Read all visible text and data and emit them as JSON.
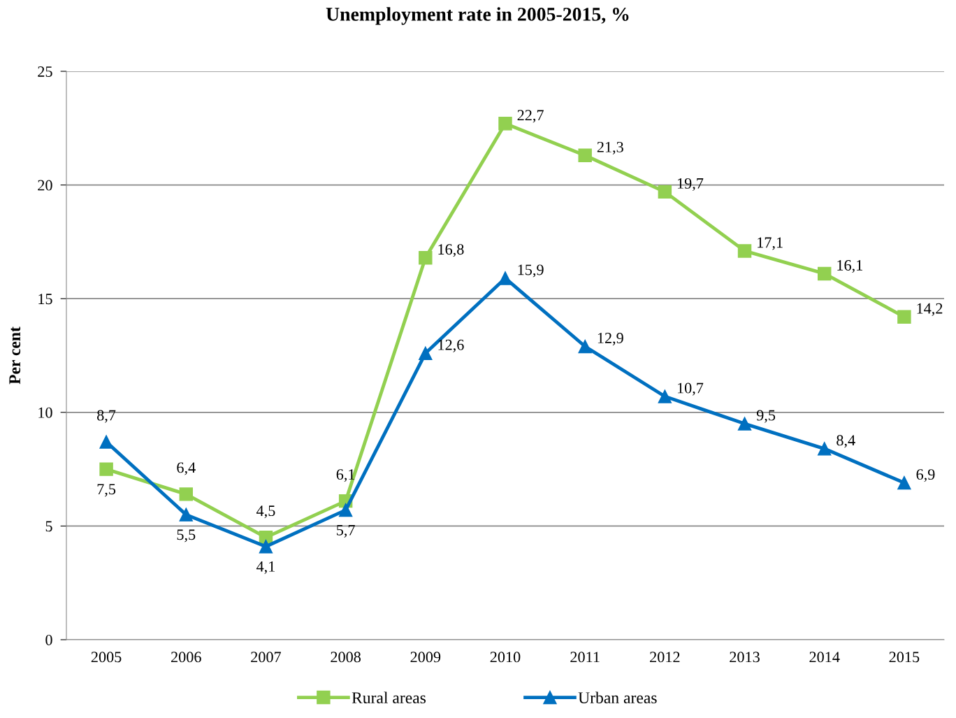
{
  "chart_data": {
    "type": "line",
    "title": "Unemployment rate in 2005-2015, %",
    "ylabel": "Per cent",
    "categories": [
      "2005",
      "2006",
      "2007",
      "2008",
      "2009",
      "2010",
      "2011",
      "2012",
      "2013",
      "2014",
      "2015"
    ],
    "series": [
      {
        "name": "Rural areas",
        "color": "#92d050",
        "marker": "square",
        "values": [
          7.5,
          6.4,
          4.5,
          6.1,
          16.8,
          22.7,
          21.3,
          19.7,
          17.1,
          16.1,
          14.2
        ],
        "value_labels": [
          "7,5",
          "6,4",
          "4,5",
          "6,1",
          "16,8",
          "22,7",
          "21,3",
          "19,7",
          "17,1",
          "16,1",
          "14,2"
        ]
      },
      {
        "name": "Urban areas",
        "color": "#0070c0",
        "marker": "triangle",
        "values": [
          8.7,
          5.5,
          4.1,
          5.7,
          12.6,
          15.9,
          12.9,
          10.7,
          9.5,
          8.4,
          6.9
        ],
        "value_labels": [
          "8,7",
          "5,5",
          "4,1",
          "5,7",
          "12,6",
          "15,9",
          "12,9",
          "10,7",
          "9,5",
          "8,4",
          "6,9"
        ]
      }
    ],
    "ylim": [
      0,
      25
    ],
    "yticks": [
      0,
      5,
      10,
      15,
      20,
      25
    ],
    "grid": "y",
    "legend": "bottom",
    "line_style": "solid"
  }
}
